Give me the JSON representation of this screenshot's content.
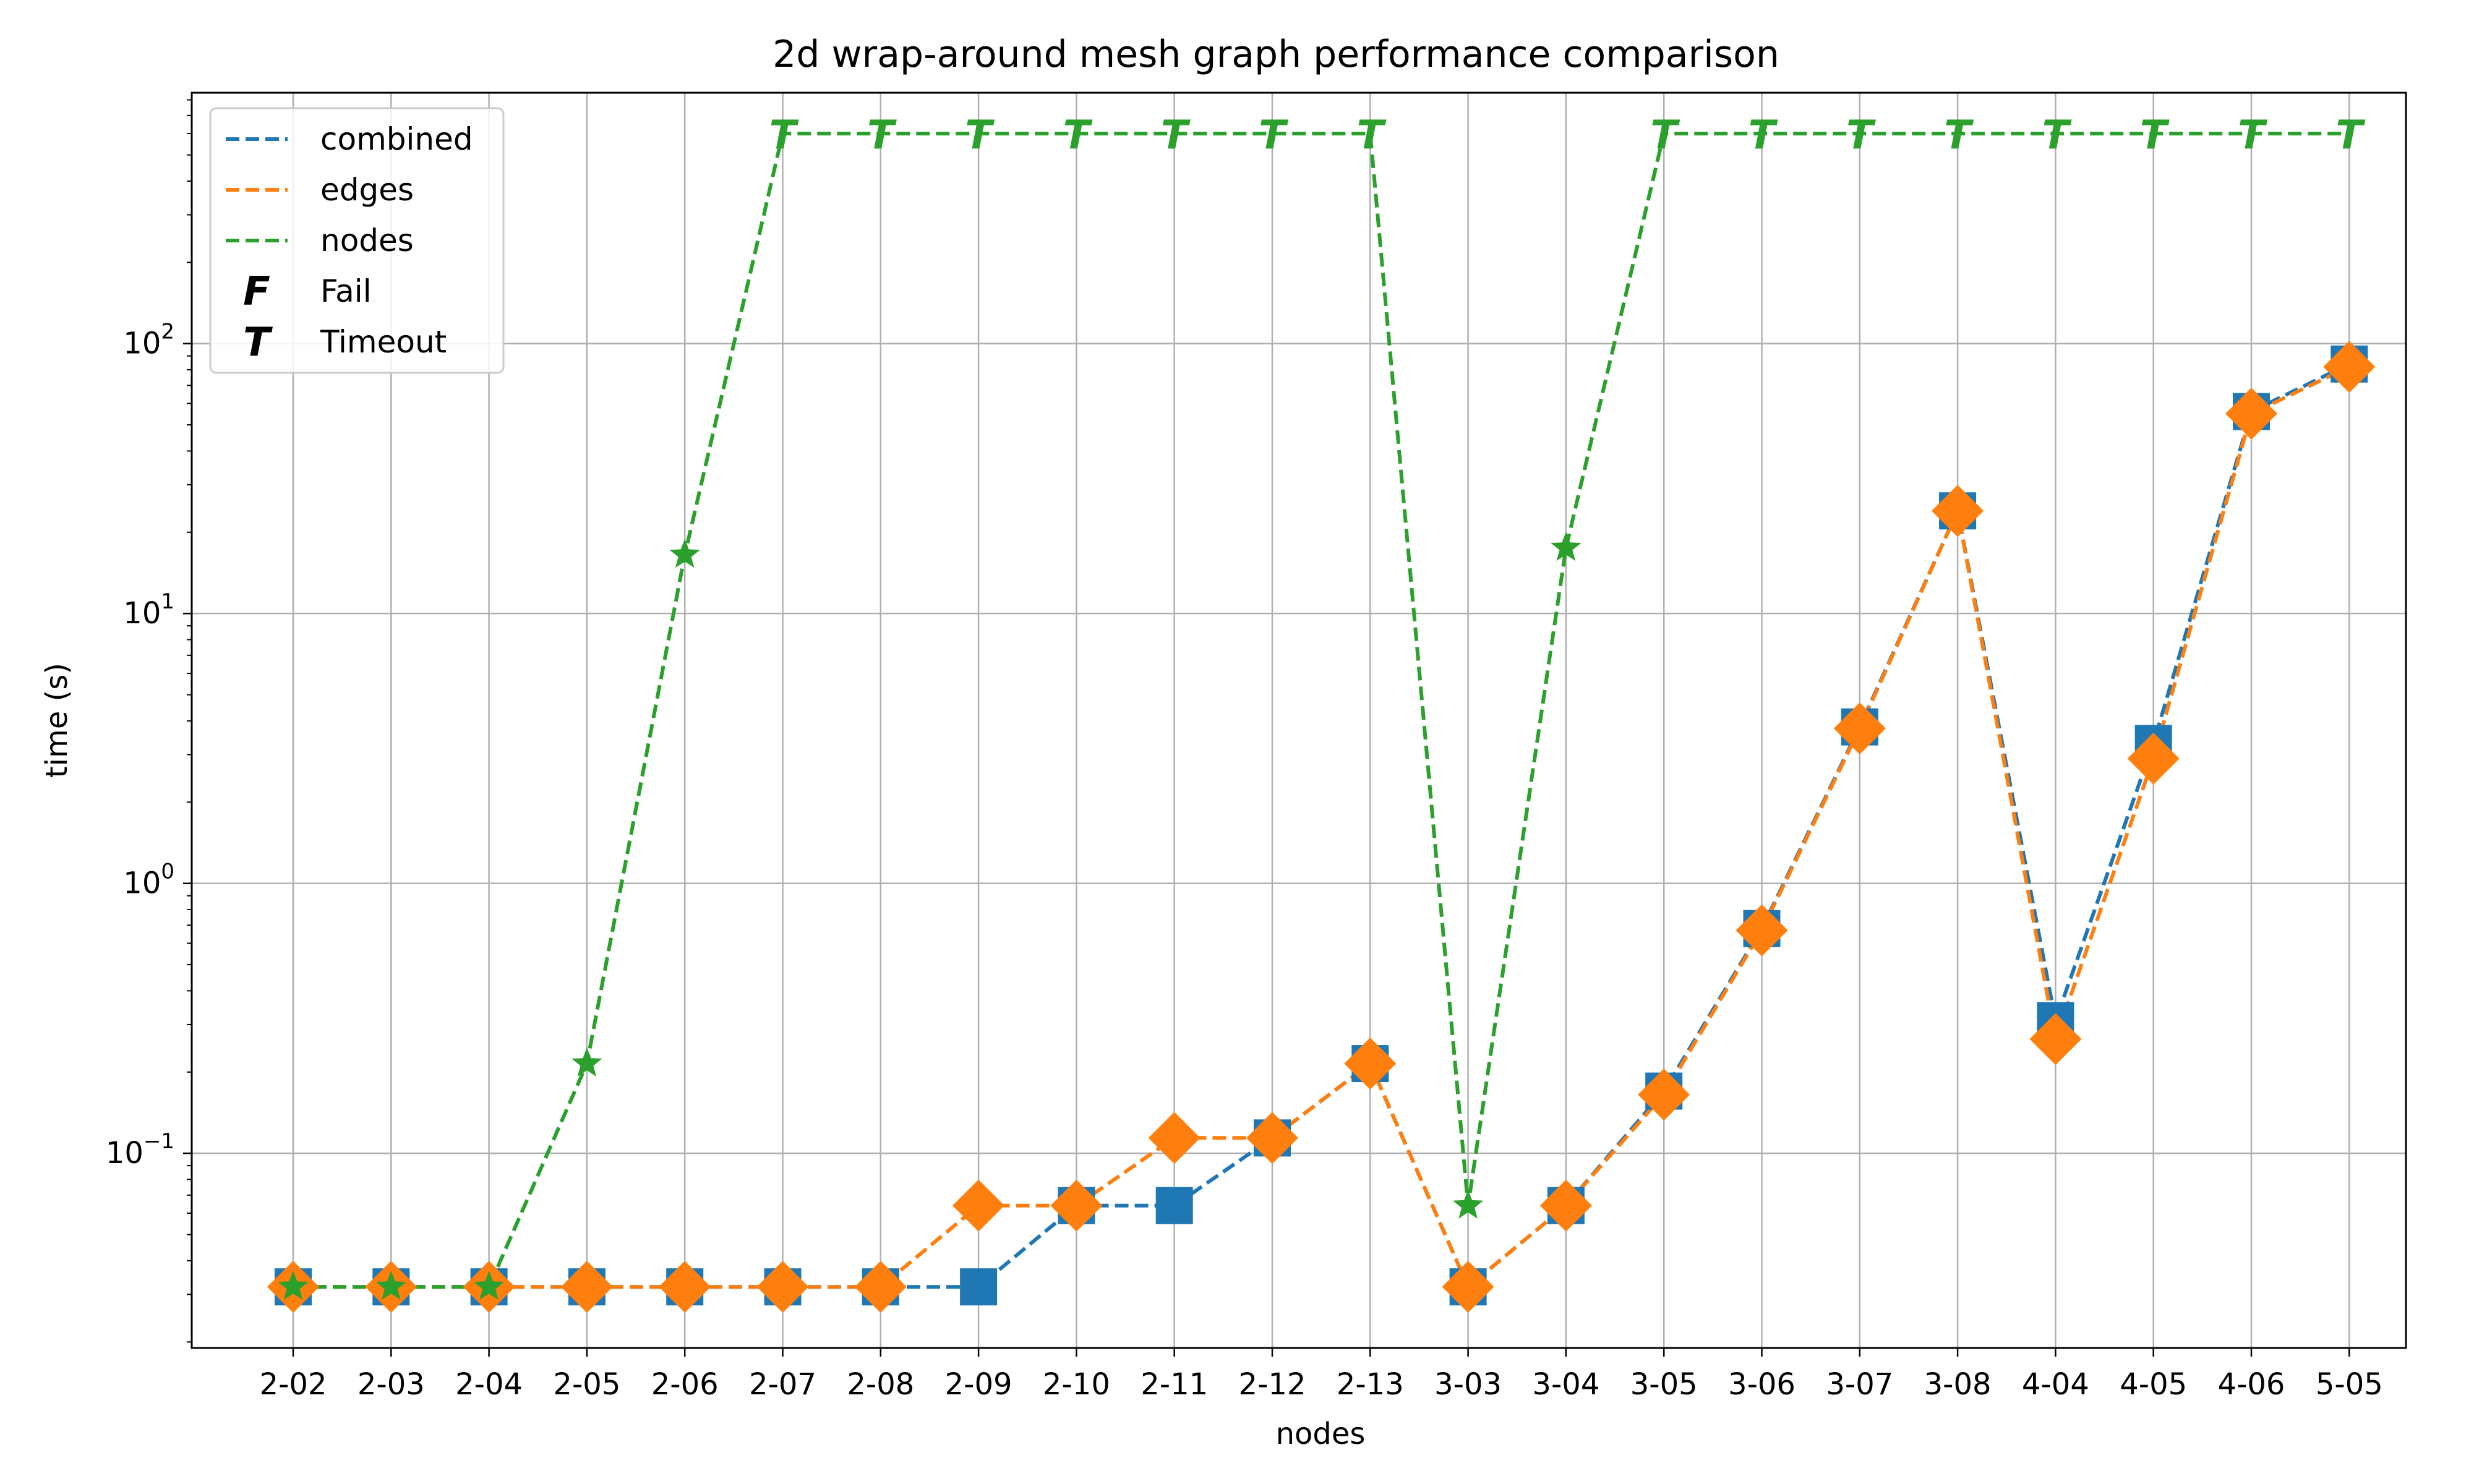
{
  "chart_data": {
    "type": "line",
    "title": "2d wrap-around mesh graph performance comparison",
    "xlabel": "nodes",
    "ylabel": "time (s)",
    "yscale": "log",
    "ylim": [
      0.019,
      850
    ],
    "yticks": [
      {
        "value": 0.1,
        "base": "10",
        "exp": "−1"
      },
      {
        "value": 1,
        "base": "10",
        "exp": "0"
      },
      {
        "value": 10,
        "base": "10",
        "exp": "1"
      },
      {
        "value": 100,
        "base": "10",
        "exp": "2"
      }
    ],
    "grid": true,
    "legend_position": "top-left",
    "categories": [
      "2-02",
      "2-03",
      "2-04",
      "2-05",
      "2-06",
      "2-07",
      "2-08",
      "2-09",
      "2-10",
      "2-11",
      "2-12",
      "2-13",
      "3-03",
      "3-04",
      "3-05",
      "3-06",
      "3-07",
      "3-08",
      "4-04",
      "4-05",
      "4-06",
      "5-05"
    ],
    "series": [
      {
        "name": "combined",
        "color": "#1f77b4",
        "marker": "square",
        "values": [
          0.032,
          0.032,
          0.032,
          0.032,
          0.032,
          0.032,
          0.032,
          0.032,
          0.064,
          0.064,
          0.114,
          0.215,
          0.032,
          0.064,
          0.17,
          0.68,
          3.8,
          24,
          0.31,
          3.3,
          56,
          84
        ],
        "status": [
          "ok",
          "ok",
          "ok",
          "ok",
          "ok",
          "ok",
          "ok",
          "ok",
          "ok",
          "ok",
          "ok",
          "ok",
          "ok",
          "ok",
          "ok",
          "ok",
          "ok",
          "ok",
          "ok",
          "ok",
          "ok",
          "ok"
        ]
      },
      {
        "name": "edges",
        "color": "#ff7f0e",
        "marker": "diamond",
        "values": [
          0.032,
          0.032,
          0.032,
          0.032,
          0.032,
          0.032,
          0.032,
          0.064,
          0.064,
          0.114,
          0.114,
          0.215,
          0.032,
          0.064,
          0.165,
          0.67,
          3.75,
          24,
          0.265,
          2.9,
          55,
          82
        ],
        "status": [
          "ok",
          "ok",
          "ok",
          "ok",
          "ok",
          "ok",
          "ok",
          "ok",
          "ok",
          "ok",
          "ok",
          "ok",
          "ok",
          "ok",
          "ok",
          "ok",
          "ok",
          "ok",
          "ok",
          "ok",
          "ok",
          "ok"
        ]
      },
      {
        "name": "nodes",
        "color": "#2ca02c",
        "marker": "star",
        "values": [
          0.032,
          0.032,
          0.032,
          0.215,
          16.5,
          600,
          600,
          600,
          600,
          600,
          600,
          600,
          0.064,
          17.5,
          600,
          600,
          600,
          600,
          600,
          600,
          600,
          600
        ],
        "status": [
          "ok",
          "ok",
          "ok",
          "ok",
          "ok",
          "timeout",
          "timeout",
          "timeout",
          "timeout",
          "timeout",
          "timeout",
          "timeout",
          "ok",
          "ok",
          "timeout",
          "timeout",
          "timeout",
          "timeout",
          "timeout",
          "timeout",
          "timeout",
          "timeout"
        ]
      }
    ],
    "legend": [
      {
        "label": "combined",
        "kind": "line",
        "color": "#1f77b4"
      },
      {
        "label": "edges",
        "kind": "line",
        "color": "#ff7f0e"
      },
      {
        "label": "nodes",
        "kind": "line",
        "color": "#2ca02c"
      },
      {
        "label": "Fail",
        "kind": "letter",
        "letter": "F",
        "color": "#000000"
      },
      {
        "label": "Timeout",
        "kind": "letter",
        "letter": "T",
        "color": "#000000"
      }
    ]
  }
}
